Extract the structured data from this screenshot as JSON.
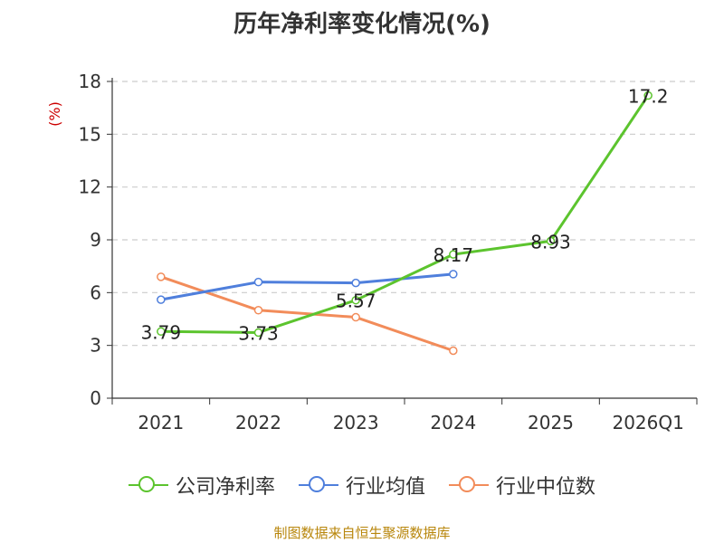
{
  "chart_data": {
    "type": "line",
    "title": "历年净利率变化情况(%)",
    "ylabel": "(%)",
    "xlabel": "",
    "categories": [
      "2021",
      "2022",
      "2023",
      "2024",
      "2025",
      "2026Q1"
    ],
    "ylim": [
      0,
      18
    ],
    "yticks": [
      0,
      3,
      6,
      9,
      12,
      15,
      18
    ],
    "grid": true,
    "legend_position": "bottom",
    "series": [
      {
        "name": "公司净利率",
        "color": "#5cc42e",
        "values": [
          3.79,
          3.73,
          5.57,
          8.17,
          8.93,
          17.2
        ],
        "labels": [
          "3.79",
          "3.73",
          "5.57",
          "8.17",
          "8.93",
          "17.2"
        ]
      },
      {
        "name": "行业均值",
        "color": "#4f7fdc",
        "values": [
          5.6,
          6.6,
          6.55,
          7.05,
          null,
          null
        ]
      },
      {
        "name": "行业中位数",
        "color": "#f28c5a",
        "values": [
          6.9,
          5.0,
          4.6,
          2.7,
          null,
          null
        ]
      }
    ]
  },
  "source": "制图数据来自恒生聚源数据库"
}
